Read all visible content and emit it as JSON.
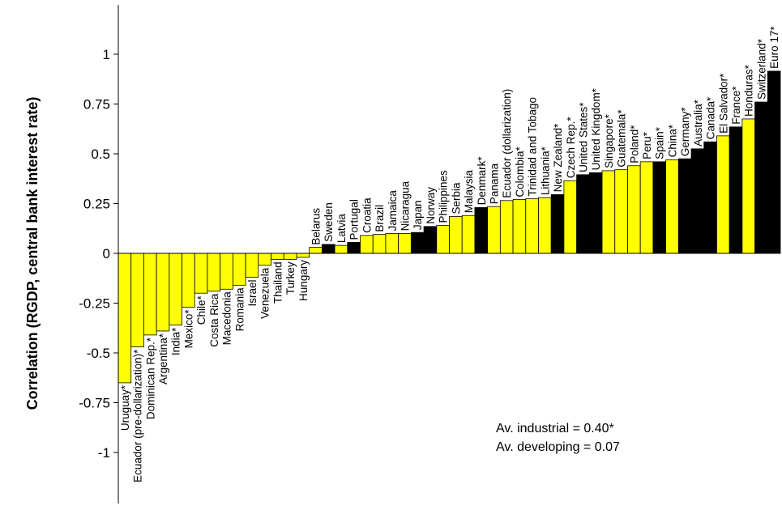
{
  "chart_data": {
    "type": "bar",
    "title": "",
    "xlabel": "",
    "ylabel": "Correlation (RGDP, central bank interest rate)",
    "ylim": [
      -1.25,
      1.25
    ],
    "yticks": [
      1,
      0.75,
      0.5,
      0.25,
      0,
      -0.25,
      -0.5,
      -0.75,
      -1
    ],
    "ytick_labels": [
      "1",
      "0.75",
      "0.5",
      "0.25",
      "0",
      "-0.25",
      "-0.5",
      "-0.75",
      "-1"
    ],
    "grid": false,
    "legend": "none",
    "categories": [
      "Uruguay*",
      "Ecuador (pre-dollarization)*",
      "Dominican Rep.*",
      "Argentina*",
      "India*",
      "Mexico*",
      "Chile*",
      "Costa Rica",
      "Macedonia",
      "Romania",
      "Israel",
      "Venezuela",
      "Thailand",
      "Turkey",
      "Hungary",
      "Belarus",
      "Sweden",
      "Latvia",
      "Portugal",
      "Croatia",
      "Brazil",
      "Jamaica",
      "Nicaragua",
      "Japan",
      "Norway",
      "Philippines",
      "Serbia",
      "Malaysia",
      "Denmark*",
      "Panama",
      "Ecuador (dollarization)",
      "Colombia*",
      "Trinidad and Tobago",
      "Lithuania*",
      "New Zealand*",
      "Czech Rep.*",
      "United States*",
      "United Kingdom*",
      "Singapore*",
      "Guatemala*",
      "Poland*",
      "Peru*",
      "Spain*",
      "China*",
      "Germany*",
      "Australia*",
      "Canada*",
      "El Salvador*",
      "France*",
      "Honduras*",
      "Switzerland*",
      "Euro 17*"
    ],
    "values": [
      -0.65,
      -0.47,
      -0.41,
      -0.39,
      -0.36,
      -0.27,
      -0.2,
      -0.19,
      -0.18,
      -0.16,
      -0.12,
      -0.06,
      -0.03,
      -0.03,
      -0.02,
      0.03,
      0.045,
      0.04,
      0.055,
      0.09,
      0.095,
      0.1,
      0.1,
      0.105,
      0.135,
      0.14,
      0.185,
      0.19,
      0.23,
      0.235,
      0.265,
      0.27,
      0.275,
      0.28,
      0.295,
      0.365,
      0.395,
      0.405,
      0.415,
      0.42,
      0.44,
      0.46,
      0.46,
      0.47,
      0.475,
      0.525,
      0.56,
      0.59,
      0.635,
      0.675,
      0.76,
      0.915
    ],
    "groups": [
      "developing",
      "developing",
      "developing",
      "developing",
      "developing",
      "developing",
      "developing",
      "developing",
      "developing",
      "developing",
      "developing",
      "developing",
      "developing",
      "developing",
      "developing",
      "developing",
      "industrial",
      "developing",
      "industrial",
      "developing",
      "developing",
      "developing",
      "developing",
      "industrial",
      "industrial",
      "developing",
      "developing",
      "developing",
      "industrial",
      "developing",
      "developing",
      "developing",
      "developing",
      "developing",
      "industrial",
      "developing",
      "industrial",
      "industrial",
      "developing",
      "developing",
      "developing",
      "developing",
      "industrial",
      "developing",
      "industrial",
      "industrial",
      "industrial",
      "developing",
      "industrial",
      "developing",
      "industrial",
      "industrial"
    ],
    "colors": {
      "developing": "#ffff00",
      "industrial": "#000000"
    },
    "annotations": [
      "Av. industrial = 0.40*",
      "Av. developing = 0.07"
    ]
  }
}
